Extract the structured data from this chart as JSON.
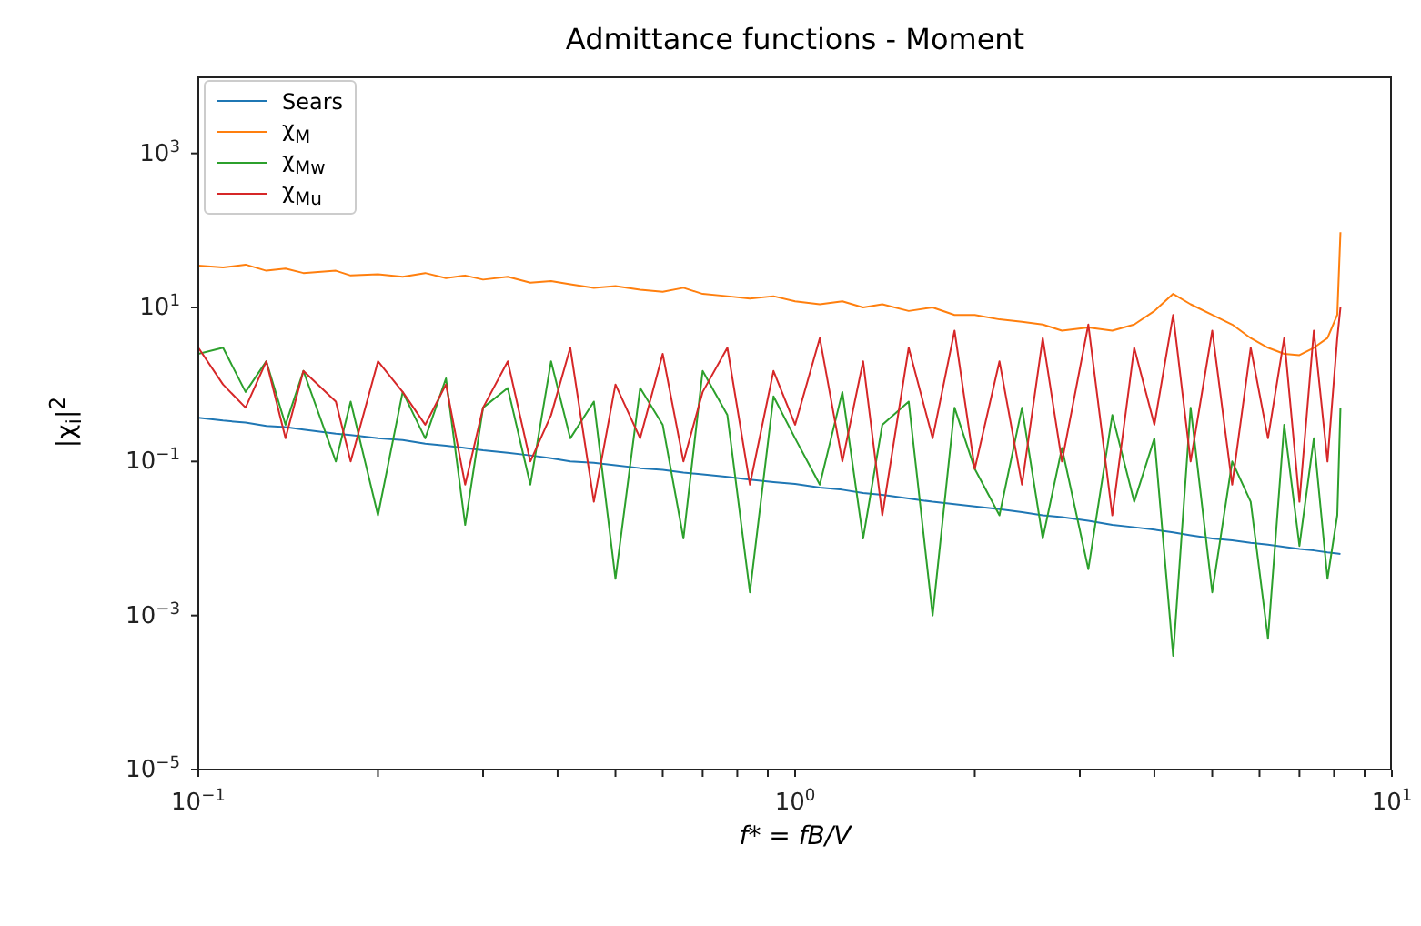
{
  "chart_data": {
    "type": "line",
    "title": "Admittance functions - Moment",
    "xlabel": "f* = fB/V",
    "ylabel": "|χ$_{i}$|$^{2}$",
    "log": "xy",
    "grid": false,
    "legend": "top left",
    "marker": "none",
    "line_style": "solid",
    "xlim": [
      0.1,
      10
    ],
    "ylim": [
      1e-05,
      10000
    ],
    "xticks": [
      {
        "value": 0.1,
        "label": "10$^{−1}$"
      },
      {
        "value": 0.2,
        "label": null
      },
      {
        "value": 0.3,
        "label": null
      },
      {
        "value": 0.4,
        "label": null
      },
      {
        "value": 0.5,
        "label": null
      },
      {
        "value": 0.6,
        "label": null
      },
      {
        "value": 0.7,
        "label": null
      },
      {
        "value": 0.8,
        "label": null
      },
      {
        "value": 0.9,
        "label": null
      },
      {
        "value": 1,
        "label": "10$^{0}$"
      },
      {
        "value": 2,
        "label": null
      },
      {
        "value": 3,
        "label": null
      },
      {
        "value": 4,
        "label": null
      },
      {
        "value": 5,
        "label": null
      },
      {
        "value": 6,
        "label": null
      },
      {
        "value": 7,
        "label": null
      },
      {
        "value": 8,
        "label": null
      },
      {
        "value": 9,
        "label": null
      },
      {
        "value": 10,
        "label": "10$^{1}$"
      }
    ],
    "yticks": [
      {
        "value": 1e-05,
        "label": "10$^{−5}$"
      },
      {
        "value": 0.001,
        "label": "10$^{−3}$"
      },
      {
        "value": 0.1,
        "label": "10$^{−1}$"
      },
      {
        "value": 10,
        "label": "10$^{1}$"
      },
      {
        "value": 1000,
        "label": "10$^{3}$"
      }
    ],
    "x": [
      0.1,
      0.11,
      0.12,
      0.13,
      0.14,
      0.15,
      0.17,
      0.18,
      0.2,
      0.22,
      0.24,
      0.26,
      0.28,
      0.3,
      0.33,
      0.36,
      0.39,
      0.42,
      0.46,
      0.5,
      0.55,
      0.6,
      0.65,
      0.7,
      0.77,
      0.84,
      0.92,
      1,
      1.1,
      1.2,
      1.3,
      1.4,
      1.55,
      1.7,
      1.85,
      2,
      2.2,
      2.4,
      2.6,
      2.8,
      3.1,
      3.4,
      3.7,
      4,
      4.3,
      4.6,
      5,
      5.4,
      5.8,
      6.2,
      6.6,
      7,
      7.4,
      7.8,
      8.1,
      8.2
    ],
    "series": [
      {
        "name": "Sears",
        "color": "#1f77b4",
        "values": [
          0.37,
          0.34,
          0.32,
          0.29,
          0.28,
          0.26,
          0.23,
          0.22,
          0.2,
          0.19,
          0.17,
          0.16,
          0.15,
          0.14,
          0.13,
          0.12,
          0.11,
          0.1,
          0.096,
          0.089,
          0.082,
          0.078,
          0.072,
          0.068,
          0.063,
          0.058,
          0.054,
          0.051,
          0.046,
          0.043,
          0.039,
          0.037,
          0.033,
          0.03,
          0.028,
          0.026,
          0.024,
          0.022,
          0.02,
          0.019,
          0.017,
          0.015,
          0.014,
          0.013,
          0.012,
          0.011,
          0.01,
          0.0095,
          0.0088,
          0.0083,
          0.0078,
          0.0073,
          0.007,
          0.0066,
          0.0064,
          0.0063
        ]
      },
      {
        "name": "χ$_{M}$",
        "color": "#ff7f0e",
        "values": [
          35,
          33,
          36,
          30,
          32,
          28,
          30,
          26,
          27,
          25,
          28,
          24,
          26,
          23,
          25,
          21,
          22,
          20,
          18,
          19,
          17,
          16,
          18,
          15,
          14,
          13,
          14,
          12,
          11,
          12,
          10,
          11,
          9,
          10,
          8,
          8,
          7,
          6.5,
          6,
          5,
          5.5,
          5,
          6,
          9,
          15,
          11,
          8,
          6,
          4,
          3,
          2.5,
          2.4,
          3,
          4,
          8,
          95
        ]
      },
      {
        "name": "χ$_{Mw}$",
        "color": "#2ca02c",
        "values": [
          2.5,
          3,
          0.8,
          2,
          0.3,
          1.5,
          0.1,
          0.6,
          0.02,
          0.8,
          0.2,
          1.2,
          0.015,
          0.5,
          0.9,
          0.05,
          2,
          0.2,
          0.6,
          0.003,
          0.9,
          0.3,
          0.01,
          1.5,
          0.4,
          0.002,
          0.7,
          0.2,
          0.05,
          0.8,
          0.01,
          0.3,
          0.6,
          0.001,
          0.5,
          0.08,
          0.02,
          0.5,
          0.01,
          0.15,
          0.004,
          0.4,
          0.03,
          0.2,
          0.0003,
          0.5,
          0.002,
          0.1,
          0.03,
          0.0005,
          0.3,
          0.008,
          0.2,
          0.003,
          0.02,
          0.5
        ]
      },
      {
        "name": "χ$_{Mu}$",
        "color": "#d62728",
        "values": [
          3,
          1,
          0.5,
          2,
          0.2,
          1.5,
          0.6,
          0.1,
          2,
          0.8,
          0.3,
          1,
          0.05,
          0.5,
          2,
          0.1,
          0.4,
          3,
          0.03,
          1,
          0.2,
          2.5,
          0.1,
          0.8,
          3,
          0.05,
          1.5,
          0.3,
          4,
          0.1,
          2,
          0.02,
          3,
          0.2,
          5,
          0.08,
          2,
          0.05,
          4,
          0.1,
          6,
          0.02,
          3,
          0.3,
          8,
          0.1,
          5,
          0.05,
          3,
          0.2,
          4,
          0.03,
          5,
          0.1,
          4,
          10
        ]
      }
    ]
  }
}
